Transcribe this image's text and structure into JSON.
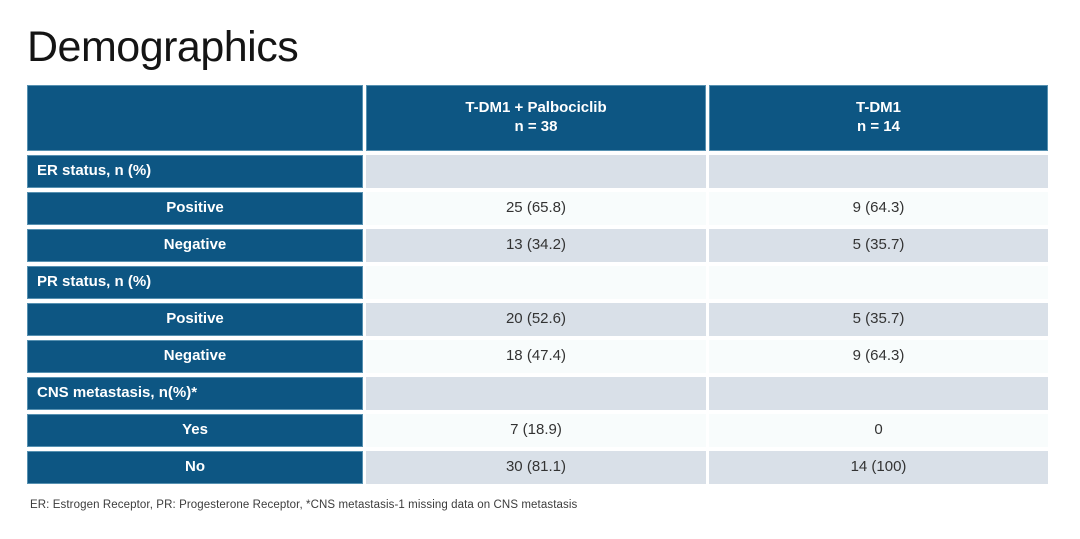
{
  "slide": {
    "title": "Demographics",
    "footnote": "ER: Estrogen Receptor, PR: Progesterone Receptor, *CNS metastasis-1 missing data on CNS metastasis"
  },
  "colors": {
    "primary_blue": "#0d5683",
    "band_gray": "#d9e0e8",
    "band_light": "#f8fcfc",
    "header_text": "#ffffff",
    "value_text": "#333333"
  },
  "table": {
    "columns": [
      {
        "title": "T-DM1 + Palbociclib",
        "subtitle": "n = 38"
      },
      {
        "title": "T-DM1",
        "subtitle": "n = 14"
      }
    ],
    "rows": [
      {
        "label": "ER status, n (%)",
        "kind": "section",
        "values": [
          "",
          ""
        ]
      },
      {
        "label": "Positive",
        "kind": "sub",
        "values": [
          "25 (65.8)",
          "9 (64.3)"
        ]
      },
      {
        "label": "Negative",
        "kind": "sub",
        "values": [
          "13 (34.2)",
          "5 (35.7)"
        ]
      },
      {
        "label": "PR status, n (%)",
        "kind": "section",
        "values": [
          "",
          ""
        ]
      },
      {
        "label": "Positive",
        "kind": "sub",
        "values": [
          "20 (52.6)",
          "5 (35.7)"
        ]
      },
      {
        "label": "Negative",
        "kind": "sub",
        "values": [
          "18 (47.4)",
          "9 (64.3)"
        ]
      },
      {
        "label": "CNS metastasis, n(%)*",
        "kind": "section",
        "values": [
          "",
          ""
        ]
      },
      {
        "label": "Yes",
        "kind": "sub",
        "values": [
          "7 (18.9)",
          "0"
        ]
      },
      {
        "label": "No",
        "kind": "sub",
        "values": [
          "30 (81.1)",
          "14 (100)"
        ]
      }
    ]
  }
}
